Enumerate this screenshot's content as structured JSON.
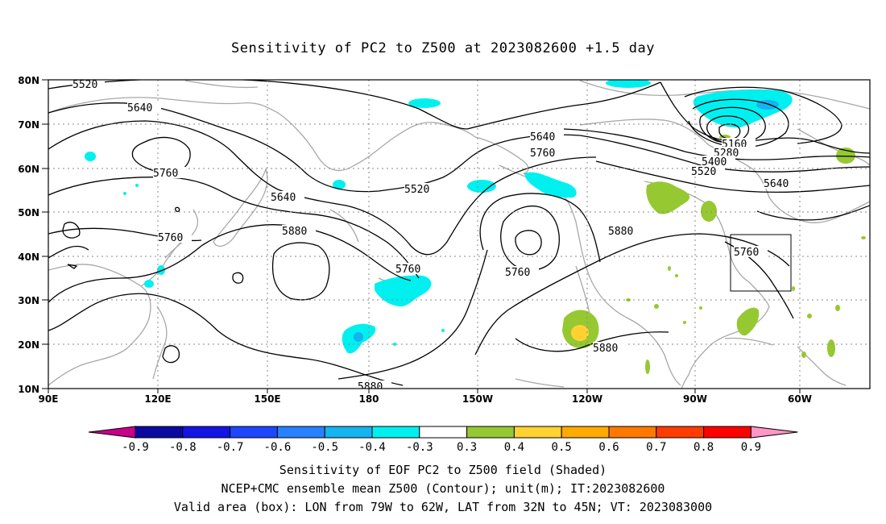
{
  "title": "Sensitivity of PC2 to Z500 at 2023082600 +1.5 day",
  "map": {
    "lon_labels": [
      "90E",
      "120E",
      "150E",
      "180",
      "150W",
      "120W",
      "90W",
      "60W"
    ],
    "lat_labels": [
      "80N",
      "70N",
      "60N",
      "50N",
      "40N",
      "30N",
      "20N",
      "10N"
    ],
    "contour_labels": [
      "5520",
      "5640",
      "5760",
      "5640",
      "5760",
      "5880",
      "5760",
      "5520",
      "5640",
      "5760",
      "5760",
      "5880",
      "5880",
      "5880",
      "5160",
      "5280",
      "5400",
      "5520",
      "5640",
      "5760",
      "5880"
    ],
    "valid_box": {
      "lon_from": "79W",
      "lon_to": "62W",
      "lat_from": "32N",
      "lat_to": "45N"
    }
  },
  "colorbar": {
    "labels": [
      "-0.9",
      "-0.8",
      "-0.7",
      "-0.6",
      "-0.5",
      "-0.4",
      "-0.3",
      "0.3",
      "0.4",
      "0.5",
      "0.6",
      "0.7",
      "0.8",
      "0.9"
    ],
    "colors": [
      "#c8008c",
      "#0a0aa0",
      "#1414e6",
      "#1e46ff",
      "#2882ff",
      "#14b4f0",
      "#00f0f0",
      "#ffffff",
      "#96c832",
      "#ffd232",
      "#ffaa00",
      "#ff7800",
      "#ff3c00",
      "#ff0000",
      "#ff96c8"
    ]
  },
  "footer": {
    "line1": "Sensitivity of EOF PC2 to Z500 field (Shaded)",
    "line2": "NCEP+CMC ensemble mean Z500 (Contour); unit(m); IT:2023082600",
    "line3": "Valid area (box): LON from 79W to 62W, LAT from 32N to 45N; VT: 2023083000"
  }
}
